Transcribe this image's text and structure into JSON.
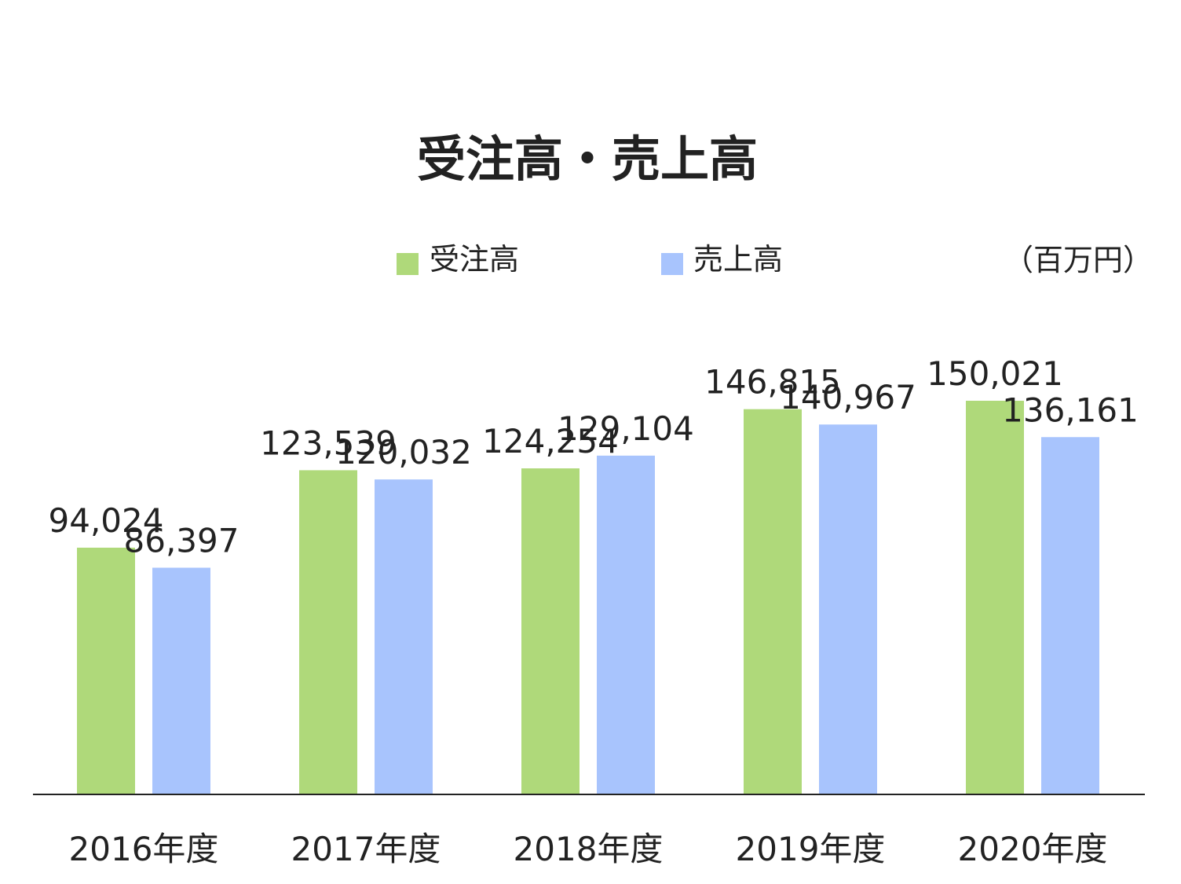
{
  "chart_data": {
    "type": "bar",
    "title": "受注高・売上高",
    "unit": "（百万円）",
    "categories": [
      "2016年度",
      "2017年度",
      "2018年度",
      "2019年度",
      "2020年度"
    ],
    "series": [
      {
        "name": "受注高",
        "color": "#afd97a",
        "values": [
          94024,
          123539,
          124254,
          146815,
          150021
        ],
        "labels": [
          "94,024",
          "123,539",
          "124,254",
          "146,815",
          "150,021"
        ]
      },
      {
        "name": "売上高",
        "color": "#a8c4fd",
        "values": [
          86397,
          120032,
          129104,
          140967,
          136161
        ],
        "labels": [
          "86,397",
          "120,032",
          "129,104",
          "140,967",
          "136,161"
        ]
      }
    ],
    "ylim": [
      0,
      162000
    ],
    "grid": false,
    "legend_position": "top"
  }
}
